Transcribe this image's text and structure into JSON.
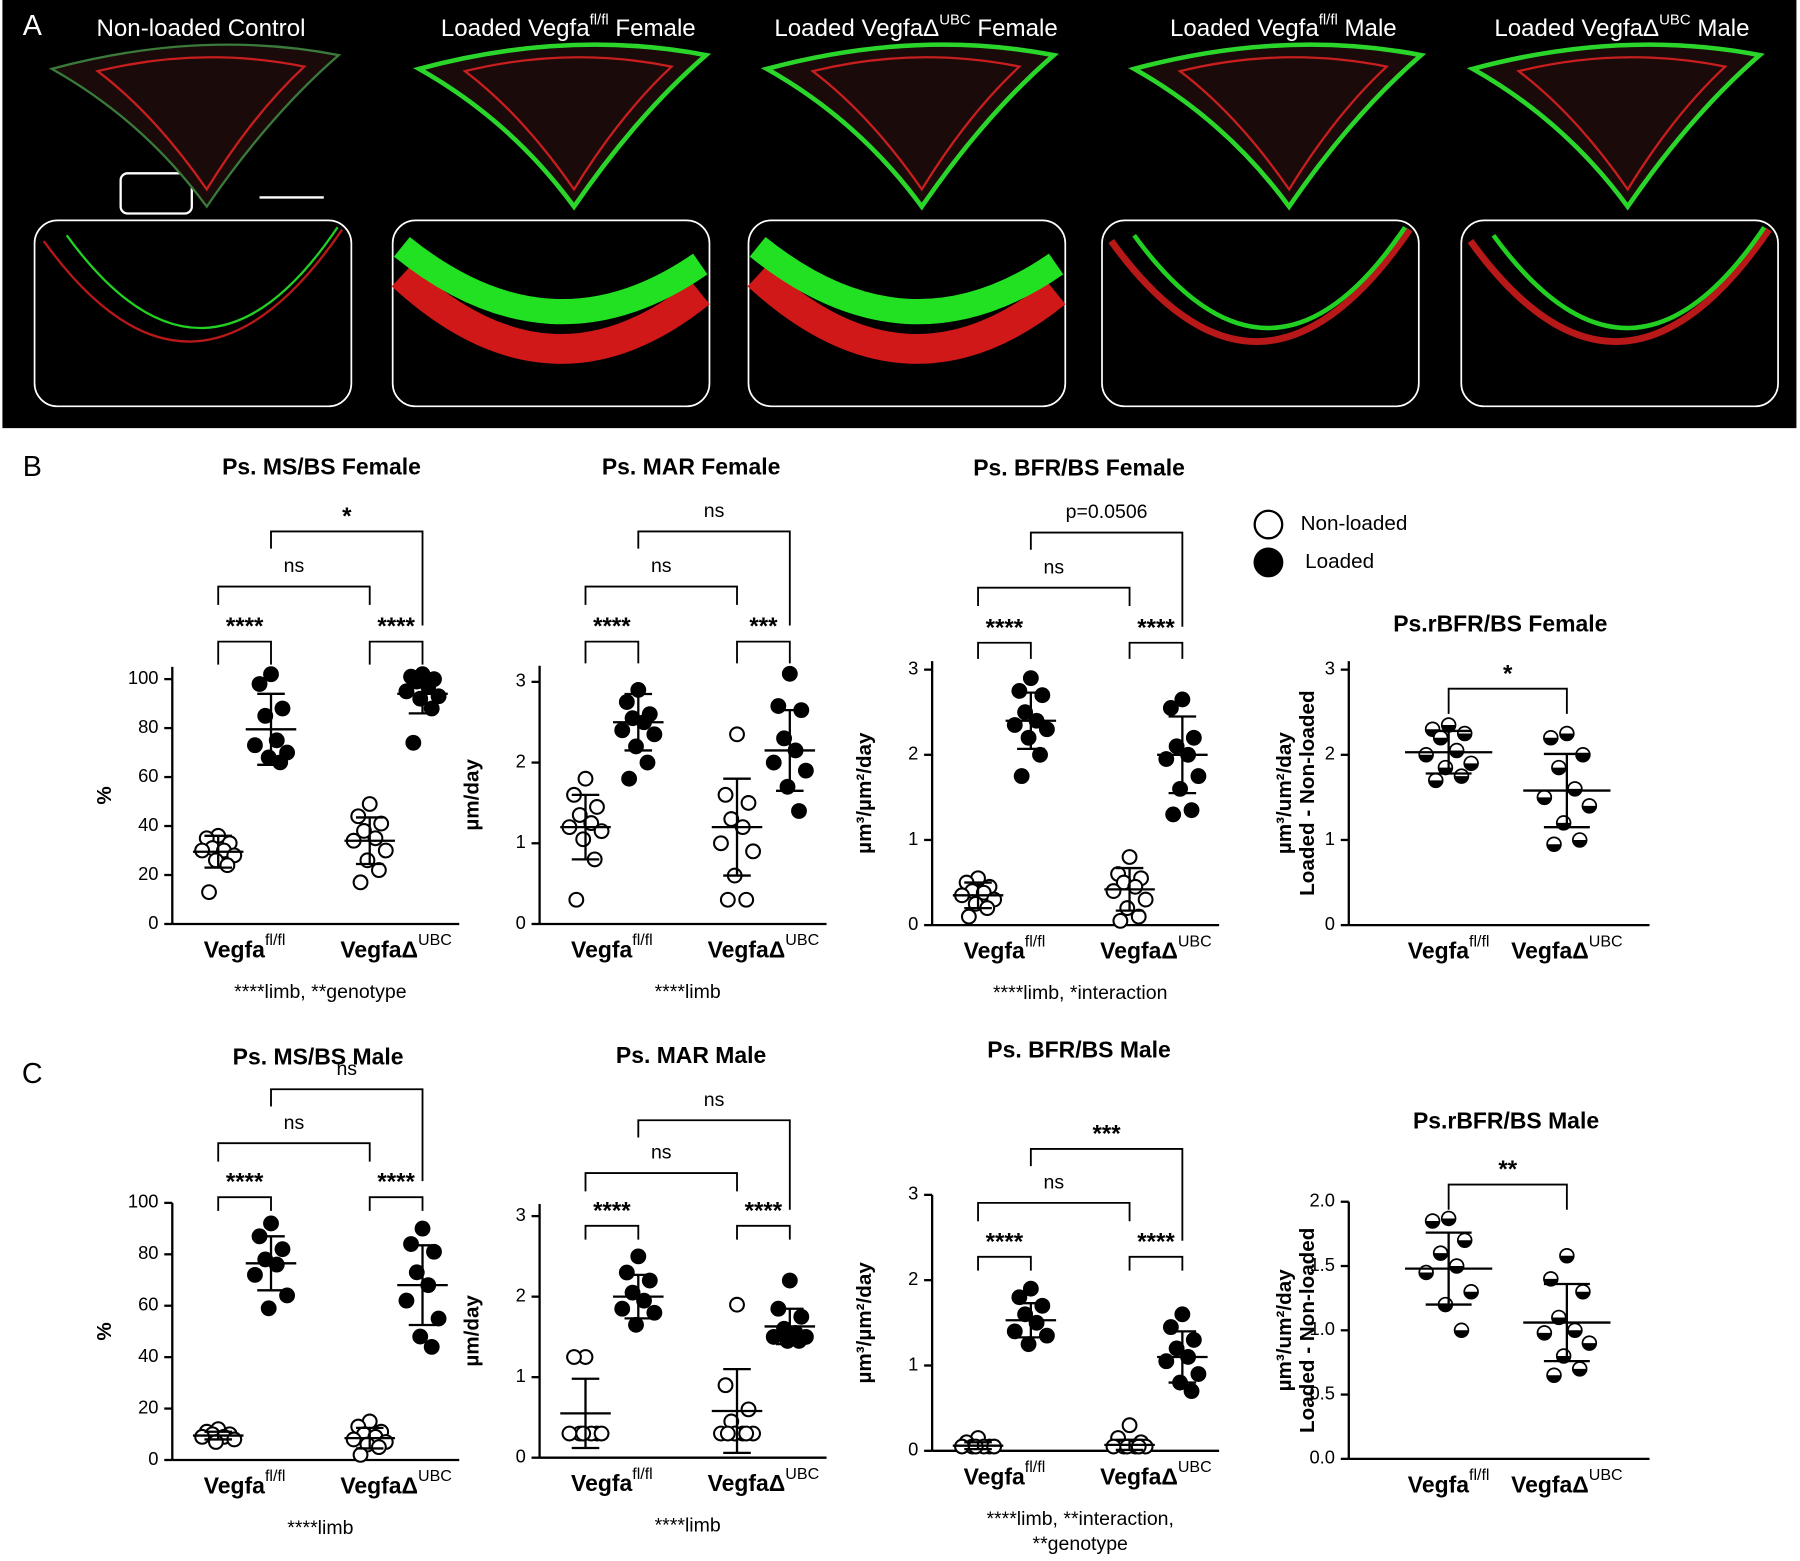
{
  "panels": [
    "A",
    "B",
    "C"
  ],
  "images": [
    {
      "text": "Non-loaded Control"
    },
    {
      "text": "Loaded Vegfa",
      "sup": "fl/fl",
      "suffix": " Female"
    },
    {
      "text": "Loaded VegfaΔ",
      "sup": "UBC",
      "suffix": " Female"
    },
    {
      "text": "Loaded Vegfa",
      "sup": "fl/fl",
      "suffix": " Male"
    },
    {
      "text": "Loaded VegfaΔ",
      "sup": "UBC",
      "suffix": " Male"
    }
  ],
  "legend": {
    "items": [
      "Non-loaded",
      "Loaded"
    ],
    "styles": [
      "open",
      "filled"
    ]
  },
  "chart_data": [
    {
      "type": "dot",
      "title": "Ps. MS/BS  Female",
      "ylabel": [
        "%"
      ],
      "categories": [
        "Vegfa",
        "VegfaΔ"
      ],
      "category_sup": [
        "fl/fl",
        "UBC"
      ],
      "ylim": [
        0,
        105
      ],
      "yticks": [
        0,
        20,
        40,
        60,
        80,
        100
      ],
      "series": [
        {
          "style": "open",
          "values": [
            [
              36,
              35,
              33,
              31,
              30,
              30,
              28,
              26,
              24,
              13
            ],
            [
              49,
              44,
              41,
              38,
              35,
              34,
              30,
              26,
              22,
              17
            ]
          ],
          "mean": [
            29.5,
            34
          ],
          "sd": [
            6.5,
            9.5
          ]
        },
        {
          "style": "filled",
          "values": [
            [
              102,
              98,
              88,
              85,
              75,
              73,
              70,
              68,
              66
            ],
            [
              102,
              101,
              100,
              99,
              97,
              95,
              93,
              92,
              88,
              74
            ]
          ],
          "mean": [
            79.5,
            94
          ],
          "sd": [
            14.5,
            8
          ]
        }
      ],
      "comparisons": [
        {
          "a": [
            0,
            0
          ],
          "b": [
            1,
            0
          ],
          "label": "****"
        },
        {
          "a": [
            0,
            1
          ],
          "b": [
            1,
            1
          ],
          "label": "****"
        },
        {
          "a": [
            0,
            0
          ],
          "b": [
            0,
            1
          ],
          "label": "ns"
        },
        {
          "a": [
            1,
            0
          ],
          "b": [
            1,
            1
          ],
          "label": "*"
        }
      ],
      "footnote": [
        "****limb, **genotype"
      ]
    },
    {
      "type": "dot",
      "title": "Ps. MAR Female",
      "ylabel": [
        "µm/day"
      ],
      "categories": [
        "Vegfa",
        "VegfaΔ"
      ],
      "category_sup": [
        "fl/fl",
        "UBC"
      ],
      "ylim": [
        0,
        3.2
      ],
      "yticks": [
        0,
        1,
        2,
        3
      ],
      "series": [
        {
          "style": "open",
          "values": [
            [
              1.8,
              1.6,
              1.45,
              1.35,
              1.25,
              1.2,
              1.15,
              1.05,
              0.8,
              0.3
            ],
            [
              2.35,
              1.6,
              1.5,
              1.3,
              1.2,
              1.0,
              0.9,
              0.6,
              0.3,
              0.3
            ]
          ],
          "mean": [
            1.2,
            1.2
          ],
          "sd": [
            0.4,
            0.6
          ]
        },
        {
          "style": "filled",
          "values": [
            [
              2.9,
              2.75,
              2.6,
              2.55,
              2.5,
              2.4,
              2.35,
              2.2,
              2.0,
              1.8
            ],
            [
              3.1,
              2.7,
              2.65,
              2.3,
              2.15,
              2.0,
              1.9,
              1.7,
              1.4
            ]
          ],
          "mean": [
            2.5,
            2.15
          ],
          "sd": [
            0.35,
            0.5
          ]
        }
      ],
      "comparisons": [
        {
          "a": [
            0,
            0
          ],
          "b": [
            1,
            0
          ],
          "label": "****"
        },
        {
          "a": [
            0,
            1
          ],
          "b": [
            1,
            1
          ],
          "label": "***"
        },
        {
          "a": [
            0,
            0
          ],
          "b": [
            0,
            1
          ],
          "label": "ns"
        },
        {
          "a": [
            1,
            0
          ],
          "b": [
            1,
            1
          ],
          "label": "ns"
        }
      ],
      "footnote": [
        "****limb"
      ]
    },
    {
      "type": "dot",
      "title": "Ps. BFR/BS Female",
      "ylabel": [
        "µm³/µm²/day"
      ],
      "categories": [
        "Vegfa",
        "VegfaΔ"
      ],
      "category_sup": [
        "fl/fl",
        "UBC"
      ],
      "ylim": [
        0,
        3.1
      ],
      "yticks": [
        0,
        1,
        2,
        3
      ],
      "series": [
        {
          "style": "open",
          "values": [
            [
              0.55,
              0.5,
              0.45,
              0.4,
              0.38,
              0.35,
              0.3,
              0.25,
              0.2,
              0.1
            ],
            [
              0.8,
              0.6,
              0.55,
              0.5,
              0.45,
              0.4,
              0.3,
              0.2,
              0.1,
              0.05
            ]
          ],
          "mean": [
            0.35,
            0.42
          ],
          "sd": [
            0.15,
            0.25
          ]
        },
        {
          "style": "filled",
          "values": [
            [
              2.9,
              2.75,
              2.7,
              2.5,
              2.4,
              2.35,
              2.3,
              2.2,
              2.0,
              1.75
            ],
            [
              2.65,
              2.55,
              2.2,
              2.1,
              2.0,
              1.95,
              1.75,
              1.6,
              1.35,
              1.3
            ]
          ],
          "mean": [
            2.4,
            2.0
          ],
          "sd": [
            0.33,
            0.45
          ]
        }
      ],
      "comparisons": [
        {
          "a": [
            0,
            0
          ],
          "b": [
            1,
            0
          ],
          "label": "****"
        },
        {
          "a": [
            0,
            1
          ],
          "b": [
            1,
            1
          ],
          "label": "****"
        },
        {
          "a": [
            0,
            0
          ],
          "b": [
            0,
            1
          ],
          "label": "ns"
        },
        {
          "a": [
            1,
            0
          ],
          "b": [
            1,
            1
          ],
          "label": "p=0.0506"
        }
      ],
      "footnote": [
        "****limb, *interaction"
      ]
    },
    {
      "type": "dot",
      "title": "Ps.rBFR/BS Female",
      "ylabel": [
        "µm³/um²/day",
        "Loaded - Non-loaded"
      ],
      "categories": [
        "Vegfa",
        "VegfaΔ"
      ],
      "category_sup": [
        "fl/fl",
        "UBC"
      ],
      "ylim": [
        0,
        3.1
      ],
      "yticks": [
        0,
        1,
        2,
        3
      ],
      "series": [
        {
          "style": "half",
          "values": [
            [
              2.35,
              2.3,
              2.25,
              2.2,
              2.05,
              2.0,
              1.9,
              1.85,
              1.75,
              1.7
            ],
            [
              2.25,
              2.2,
              2.0,
              1.85,
              1.6,
              1.5,
              1.4,
              1.2,
              1.0,
              0.95
            ]
          ],
          "mean": [
            2.03,
            1.58
          ],
          "sd": [
            0.25,
            0.43
          ]
        }
      ],
      "comparisons": [
        {
          "a": [
            0,
            0
          ],
          "b": [
            0,
            1
          ],
          "label": "*"
        }
      ]
    },
    {
      "type": "dot",
      "title": "Ps. MS/BS  Male",
      "ylabel": [
        "%"
      ],
      "categories": [
        "Vegfa",
        "VegfaΔ"
      ],
      "category_sup": [
        "fl/fl",
        "UBC"
      ],
      "ylim": [
        0,
        100
      ],
      "yticks": [
        0,
        20,
        40,
        60,
        80,
        100
      ],
      "series": [
        {
          "style": "open",
          "values": [
            [
              12,
              11,
              10,
              10,
              9,
              9,
              8,
              7
            ],
            [
              15,
              13,
              11,
              10,
              9,
              8,
              7,
              6,
              5,
              2
            ]
          ],
          "mean": [
            9.5,
            8.5
          ],
          "sd": [
            1.5,
            4
          ]
        },
        {
          "style": "filled",
          "values": [
            [
              92,
              87,
              82,
              78,
              76,
              72,
              64,
              59
            ],
            [
              90,
              84,
              81,
              73,
              68,
              62,
              55,
              48,
              44
            ]
          ],
          "mean": [
            76.5,
            68
          ],
          "sd": [
            10.5,
            15.5
          ]
        }
      ],
      "comparisons": [
        {
          "a": [
            0,
            0
          ],
          "b": [
            1,
            0
          ],
          "label": "****"
        },
        {
          "a": [
            0,
            1
          ],
          "b": [
            1,
            1
          ],
          "label": "****"
        },
        {
          "a": [
            0,
            0
          ],
          "b": [
            0,
            1
          ],
          "label": "ns"
        },
        {
          "a": [
            1,
            0
          ],
          "b": [
            1,
            1
          ],
          "label": "ns"
        }
      ],
      "footnote": [
        "****limb"
      ]
    },
    {
      "type": "dot",
      "title": "Ps. MAR Male",
      "ylabel": [
        "µm/day"
      ],
      "categories": [
        "Vegfa",
        "VegfaΔ"
      ],
      "category_sup": [
        "fl/fl",
        "UBC"
      ],
      "ylim": [
        0,
        3.15
      ],
      "yticks": [
        0,
        1,
        2,
        3
      ],
      "series": [
        {
          "style": "open",
          "values": [
            [
              1.25,
              1.25,
              0.3,
              0.3,
              0.3,
              0.3,
              0.3,
              0.3
            ],
            [
              1.9,
              0.9,
              0.6,
              0.45,
              0.3,
              0.3,
              0.3,
              0.3,
              0.3,
              0.3
            ]
          ],
          "mean": [
            0.55,
            0.58
          ],
          "sd": [
            0.43,
            0.52
          ]
        },
        {
          "style": "filled",
          "values": [
            [
              2.5,
              2.3,
              2.2,
              2.05,
              1.95,
              1.85,
              1.8,
              1.65
            ],
            [
              2.2,
              1.85,
              1.75,
              1.6,
              1.55,
              1.5,
              1.5,
              1.45,
              1.45
            ]
          ],
          "mean": [
            2.0,
            1.63
          ],
          "sd": [
            0.27,
            0.22
          ]
        }
      ],
      "comparisons": [
        {
          "a": [
            0,
            0
          ],
          "b": [
            1,
            0
          ],
          "label": "****"
        },
        {
          "a": [
            0,
            1
          ],
          "b": [
            1,
            1
          ],
          "label": "****"
        },
        {
          "a": [
            0,
            0
          ],
          "b": [
            0,
            1
          ],
          "label": "ns"
        },
        {
          "a": [
            1,
            0
          ],
          "b": [
            1,
            1
          ],
          "label": "ns"
        }
      ],
      "footnote": [
        "****limb"
      ]
    },
    {
      "type": "dot",
      "title": "Ps. BFR/BS Male",
      "ylabel": [
        "µm³/µm²/day"
      ],
      "categories": [
        "Vegfa",
        "VegfaΔ"
      ],
      "category_sup": [
        "fl/fl",
        "UBC"
      ],
      "ylim": [
        0,
        3
      ],
      "yticks": [
        0,
        1,
        2,
        3
      ],
      "series": [
        {
          "style": "open",
          "values": [
            [
              0.15,
              0.1,
              0.05,
              0.05,
              0.05,
              0.05,
              0.05,
              0.05
            ],
            [
              0.3,
              0.15,
              0.1,
              0.05,
              0.05,
              0.05,
              0.05,
              0.05,
              0.05
            ]
          ],
          "mean": [
            0.06,
            0.07
          ],
          "sd": [
            0.04,
            0.06
          ]
        },
        {
          "style": "filled",
          "values": [
            [
              1.9,
              1.8,
              1.7,
              1.6,
              1.5,
              1.4,
              1.35,
              1.25
            ],
            [
              1.6,
              1.45,
              1.3,
              1.2,
              1.1,
              1.05,
              0.9,
              0.8,
              0.7
            ]
          ],
          "mean": [
            1.53,
            1.1
          ],
          "sd": [
            0.2,
            0.3
          ]
        }
      ],
      "comparisons": [
        {
          "a": [
            0,
            0
          ],
          "b": [
            1,
            0
          ],
          "label": "****"
        },
        {
          "a": [
            0,
            1
          ],
          "b": [
            1,
            1
          ],
          "label": "****"
        },
        {
          "a": [
            0,
            0
          ],
          "b": [
            0,
            1
          ],
          "label": "ns"
        },
        {
          "a": [
            1,
            0
          ],
          "b": [
            1,
            1
          ],
          "label": "***"
        }
      ],
      "footnote": [
        "****limb, **interaction,",
        "**genotype"
      ]
    },
    {
      "type": "dot",
      "title": "Ps.rBFR/BS Male",
      "ylabel": [
        "µm³/um²/day",
        "Loaded - Non-loaded"
      ],
      "categories": [
        "Vegfa",
        "VegfaΔ"
      ],
      "category_sup": [
        "fl/fl",
        "UBC"
      ],
      "ylim": [
        0,
        2
      ],
      "yticks": [
        {
          "value": 0,
          "label": "0.0"
        },
        0.5,
        {
          "value": 1,
          "label": "1.0"
        },
        1.5,
        {
          "value": 2,
          "label": "2.0"
        }
      ],
      "series": [
        {
          "style": "half",
          "values": [
            [
              1.87,
              1.85,
              1.7,
              1.6,
              1.5,
              1.45,
              1.3,
              1.2,
              1.0
            ],
            [
              1.58,
              1.4,
              1.3,
              1.1,
              1.0,
              0.98,
              0.9,
              0.8,
              0.7,
              0.65
            ]
          ],
          "mean": [
            1.48,
            1.06
          ],
          "sd": [
            0.28,
            0.3
          ]
        }
      ],
      "comparisons": [
        {
          "a": [
            0,
            0
          ],
          "b": [
            0,
            1
          ],
          "label": "**"
        }
      ]
    }
  ]
}
